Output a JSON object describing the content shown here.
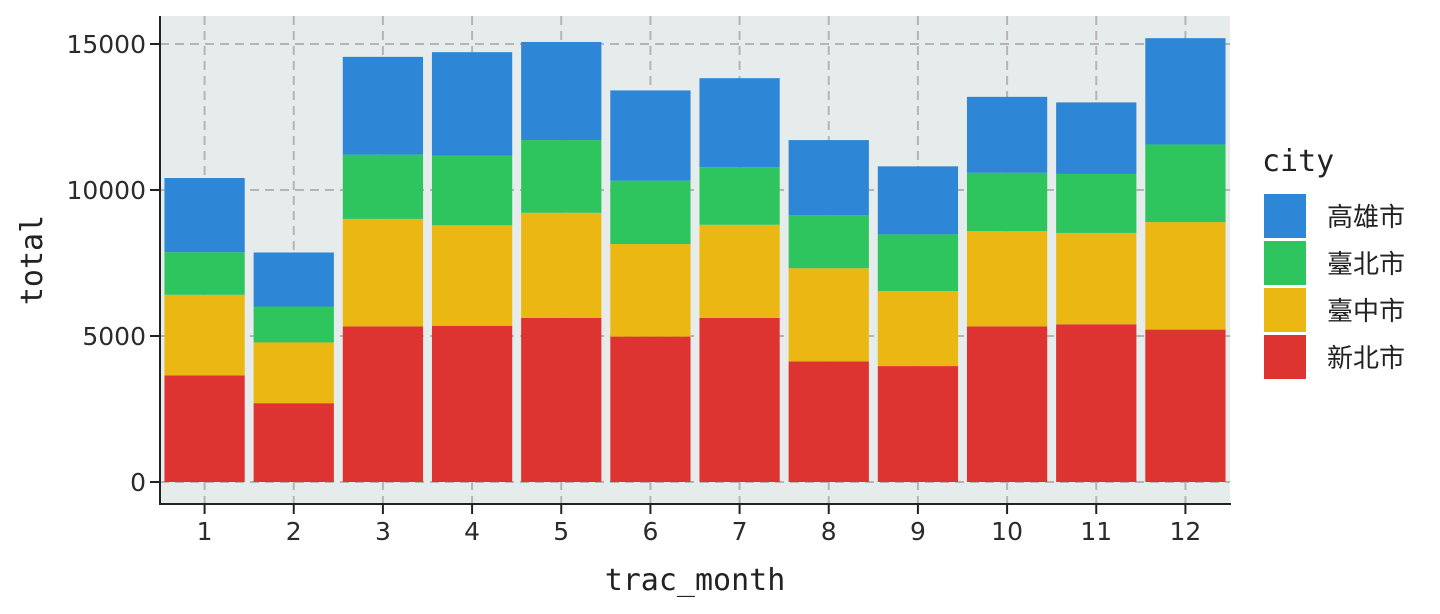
{
  "chart_data": {
    "type": "bar",
    "stacked": true,
    "categories": [
      "1",
      "2",
      "3",
      "4",
      "5",
      "6",
      "7",
      "8",
      "9",
      "10",
      "11",
      "12"
    ],
    "series": [
      {
        "name": "新北市",
        "color": "#de3431",
        "values": [
          3650,
          2700,
          5330,
          5350,
          5620,
          4980,
          5620,
          4130,
          3970,
          5330,
          5400,
          5220
        ]
      },
      {
        "name": "臺中市",
        "color": "#ebb813",
        "values": [
          2760,
          2080,
          3680,
          3440,
          3600,
          3170,
          3190,
          3190,
          2570,
          3260,
          3130,
          3680
        ]
      },
      {
        "name": "臺北市",
        "color": "#2ec55f",
        "values": [
          1460,
          1230,
          2200,
          2390,
          2490,
          2170,
          1970,
          1820,
          1940,
          2000,
          2020,
          2660
        ]
      },
      {
        "name": "高雄市",
        "color": "#2e86d6",
        "values": [
          2540,
          1850,
          3350,
          3540,
          3360,
          3090,
          3050,
          2570,
          2330,
          2600,
          2450,
          3640
        ]
      }
    ],
    "xlabel": "trac_month",
    "ylabel": "total",
    "ylim": [
      0,
      16000
    ],
    "yticks": [
      0,
      5000,
      10000,
      15000
    ],
    "grid": true,
    "legend": {
      "title": "city",
      "position": "right",
      "order": [
        "高雄市",
        "臺北市",
        "臺中市",
        "新北市"
      ]
    },
    "colors": {
      "panel_background": "#e6ebeb",
      "grid": "#b5b5b5",
      "axis": "#222222"
    }
  }
}
